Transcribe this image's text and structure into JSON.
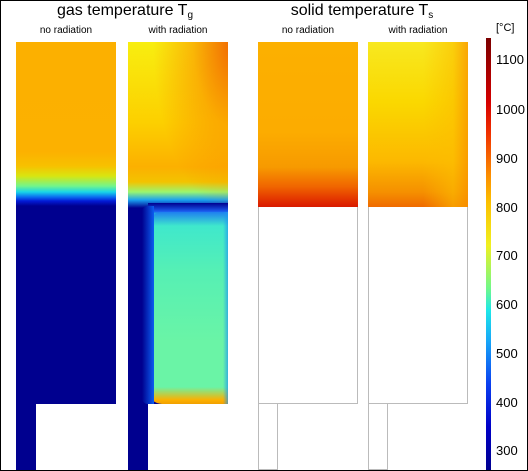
{
  "titles": {
    "gas": {
      "text": "gas temperature T",
      "sub": "g"
    },
    "solid": {
      "text": "solid temperature T",
      "sub": "s"
    }
  },
  "panel_labels": {
    "gas_no_rad": "no radiation",
    "gas_with_rad": "with radiation",
    "solid_no_rad": "no radiation",
    "solid_with_rad": "with radiation"
  },
  "colorbar": {
    "unit": "[°C]",
    "ticks": [
      "1100",
      "1000",
      "900",
      "800",
      "700",
      "600",
      "500",
      "400",
      "300"
    ],
    "colormap": [
      "#7a0000",
      "#d60000",
      "#fc9000",
      "#f0f020",
      "#70f88a",
      "#1ee8e8",
      "#0a40f0",
      "#00008f"
    ]
  }
}
